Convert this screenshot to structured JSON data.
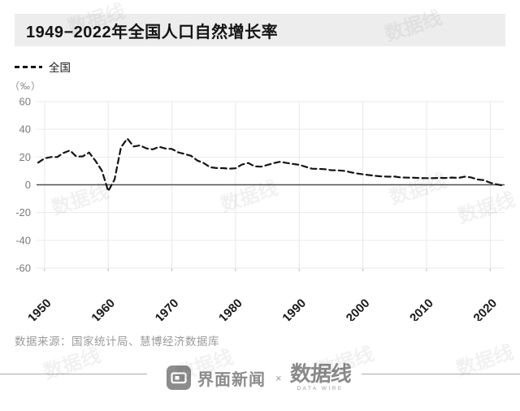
{
  "title": "1949−2022年全国人口自然增长率",
  "legend": {
    "label": "全国"
  },
  "unit_label": "（‰）",
  "source": "数据来源：国家统计局、慧博经济数据库",
  "footer": {
    "jiemian_label": "界面新闻",
    "separator": "×",
    "datawire_label": "数据线",
    "datawire_sub": "DATA WIRE"
  },
  "watermark_text": "数据线",
  "colors": {
    "title_bar_bg": "#ededed",
    "line": "#141414",
    "zero_axis": "#4f4f4f",
    "grid": "#e9e9e9",
    "y_tick_text": "#7a7a7a",
    "x_tick_text": "#1a1a1a",
    "muted_gray": "#9b9b9b"
  },
  "chart_data": {
    "type": "line",
    "title": "1949−2022年全国人口自然增长率",
    "unit": "‰",
    "xlabel": "",
    "ylabel": "（‰）",
    "xlim": [
      1949,
      2022
    ],
    "ylim": [
      -60,
      60
    ],
    "yticks": [
      60,
      40,
      20,
      0,
      -20,
      -40,
      -60
    ],
    "xticks": [
      1950,
      1960,
      1970,
      1980,
      1990,
      2000,
      2010,
      2020
    ],
    "grid": true,
    "legend_position": "top-left",
    "series": [
      {
        "name": "全国",
        "style": "dashed",
        "color": "#141414",
        "x": [
          1949,
          1950,
          1951,
          1952,
          1953,
          1954,
          1955,
          1956,
          1957,
          1958,
          1959,
          1960,
          1961,
          1962,
          1963,
          1964,
          1965,
          1966,
          1967,
          1968,
          1969,
          1970,
          1971,
          1972,
          1973,
          1974,
          1975,
          1976,
          1977,
          1978,
          1979,
          1980,
          1981,
          1982,
          1983,
          1984,
          1985,
          1986,
          1987,
          1988,
          1989,
          1990,
          1991,
          1992,
          1993,
          1994,
          1995,
          1996,
          1997,
          1998,
          1999,
          2000,
          2001,
          2002,
          2003,
          2004,
          2005,
          2006,
          2007,
          2008,
          2009,
          2010,
          2011,
          2012,
          2013,
          2014,
          2015,
          2016,
          2017,
          2018,
          2019,
          2020,
          2021,
          2022
        ],
        "values": [
          16.0,
          19.0,
          20.0,
          20.0,
          23.0,
          24.79,
          20.32,
          20.5,
          23.23,
          17.24,
          10.19,
          -4.57,
          3.78,
          26.99,
          33.33,
          27.64,
          28.38,
          26.22,
          25.53,
          27.38,
          26.08,
          25.83,
          23.33,
          22.16,
          20.89,
          17.48,
          15.69,
          12.66,
          12.06,
          12.0,
          11.61,
          11.87,
          14.55,
          15.68,
          13.29,
          13.08,
          14.26,
          15.57,
          16.61,
          15.73,
          15.04,
          14.39,
          12.98,
          11.6,
          11.45,
          11.21,
          10.55,
          10.42,
          10.06,
          9.14,
          8.18,
          7.58,
          6.95,
          6.45,
          6.01,
          5.87,
          5.89,
          5.28,
          5.17,
          5.08,
          4.87,
          4.79,
          4.79,
          4.95,
          4.92,
          5.21,
          4.96,
          5.86,
          5.32,
          3.81,
          3.34,
          1.45,
          0.34,
          -0.6
        ]
      }
    ]
  }
}
